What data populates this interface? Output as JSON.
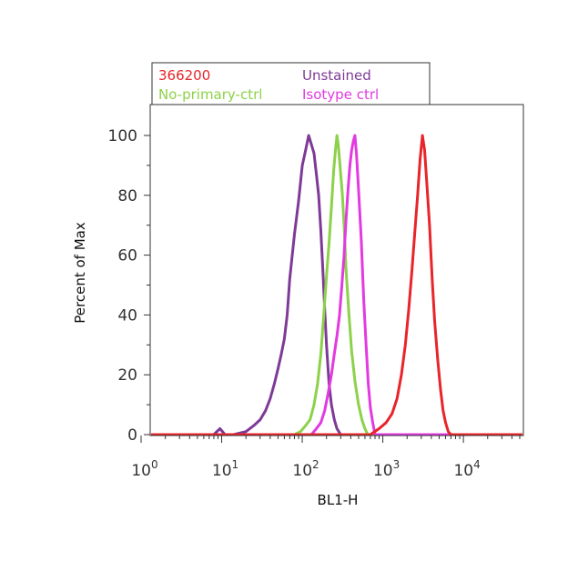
{
  "chart_data": {
    "type": "line",
    "title": "",
    "xlabel": "BL1-H",
    "ylabel": "Percent of Max",
    "x_scale": "log",
    "xlim": [
      1,
      60000
    ],
    "ylim": [
      0,
      110
    ],
    "grid": false,
    "legend_position": "top",
    "x_ticks": [
      {
        "value": 1,
        "base": "10",
        "exp": "0"
      },
      {
        "value": 10,
        "base": "10",
        "exp": "1"
      },
      {
        "value": 100,
        "base": "10",
        "exp": "2"
      },
      {
        "value": 1000,
        "base": "10",
        "exp": "3"
      },
      {
        "value": 10000,
        "base": "10",
        "exp": "4"
      }
    ],
    "y_ticks": [
      {
        "value": 0,
        "label": "0"
      },
      {
        "value": 20,
        "label": "20"
      },
      {
        "value": 40,
        "label": "40"
      },
      {
        "value": 60,
        "label": "60"
      },
      {
        "value": 80,
        "label": "80"
      },
      {
        "value": 100,
        "label": "100"
      }
    ],
    "legend": [
      {
        "label": "366200",
        "color": "#e8252a"
      },
      {
        "label": "Unstained",
        "color": "#7e3a96"
      },
      {
        "label": "No-primary-ctrl",
        "color": "#8dd14a"
      },
      {
        "label": "Isotype ctrl",
        "color": "#e23ae0"
      }
    ],
    "series": [
      {
        "name": "Unstained",
        "color": "#7e3a96",
        "x": [
          1,
          8,
          9.5,
          11,
          14,
          20,
          25,
          30,
          35,
          40,
          45,
          50,
          55,
          60,
          65,
          70,
          80,
          90,
          100,
          110,
          120,
          130,
          140,
          150,
          160,
          170,
          180,
          190,
          200,
          215,
          230,
          250,
          270,
          300,
          400,
          60000
        ],
        "y": [
          0,
          0,
          2,
          0,
          0,
          1,
          3,
          5,
          8,
          12,
          17,
          22,
          27,
          32,
          40,
          52,
          67,
          78,
          90,
          95,
          100,
          97,
          94,
          87,
          80,
          68,
          55,
          42,
          30,
          17,
          10,
          5,
          2,
          0,
          0,
          0
        ]
      },
      {
        "name": "No-primary-ctrl",
        "color": "#8dd14a",
        "x": [
          1,
          80,
          95,
          110,
          125,
          140,
          155,
          170,
          185,
          200,
          215,
          230,
          245,
          260,
          270,
          280,
          290,
          300,
          315,
          330,
          350,
          380,
          410,
          450,
          500,
          550,
          600,
          650,
          60000
        ],
        "y": [
          0,
          0,
          1,
          3,
          5,
          10,
          17,
          27,
          40,
          53,
          64,
          76,
          88,
          96,
          100,
          97,
          92,
          87,
          80,
          70,
          55,
          40,
          28,
          18,
          10,
          5,
          2,
          0,
          0
        ]
      },
      {
        "name": "Isotype ctrl",
        "color": "#e23ae0",
        "x": [
          1,
          130,
          150,
          170,
          190,
          210,
          230,
          250,
          270,
          290,
          310,
          330,
          350,
          370,
          390,
          410,
          430,
          450,
          470,
          500,
          540,
          580,
          620,
          660,
          700,
          750,
          800,
          60000
        ],
        "y": [
          0,
          0,
          2,
          4,
          8,
          14,
          20,
          27,
          33,
          40,
          50,
          60,
          72,
          82,
          90,
          95,
          98,
          100,
          94,
          82,
          65,
          45,
          30,
          17,
          9,
          4,
          0,
          0
        ]
      },
      {
        "name": "366200",
        "color": "#e8252a",
        "x": [
          1,
          700,
          900,
          1100,
          1300,
          1500,
          1700,
          1900,
          2100,
          2300,
          2500,
          2700,
          2900,
          3100,
          3300,
          3500,
          3800,
          4100,
          4400,
          4800,
          5200,
          5600,
          6000,
          6500,
          7000,
          60000
        ],
        "y": [
          0,
          0,
          2,
          4,
          7,
          12,
          20,
          30,
          42,
          55,
          68,
          80,
          92,
          100,
          95,
          85,
          70,
          52,
          38,
          25,
          15,
          8,
          4,
          1,
          0,
          0
        ]
      }
    ]
  }
}
